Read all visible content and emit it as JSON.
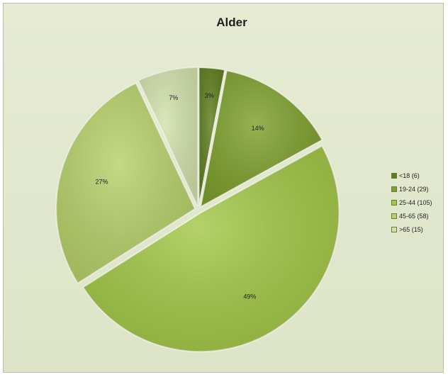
{
  "chart_data": {
    "type": "pie",
    "title": "Alder",
    "categories": [
      "<18 (6)",
      "19-24 (29)",
      "25-44 (105)",
      "45-65 (58)",
      ">65 (15)"
    ],
    "values": [
      3,
      14,
      49,
      27,
      7
    ],
    "data_labels": [
      "3%",
      "14%",
      "49%",
      "27%",
      "7%"
    ],
    "colors": [
      "#5e7d1e",
      "#7ea02d",
      "#a3c848",
      "#b7d16a",
      "#d2e2ad"
    ],
    "legend": "right",
    "grid": false
  }
}
